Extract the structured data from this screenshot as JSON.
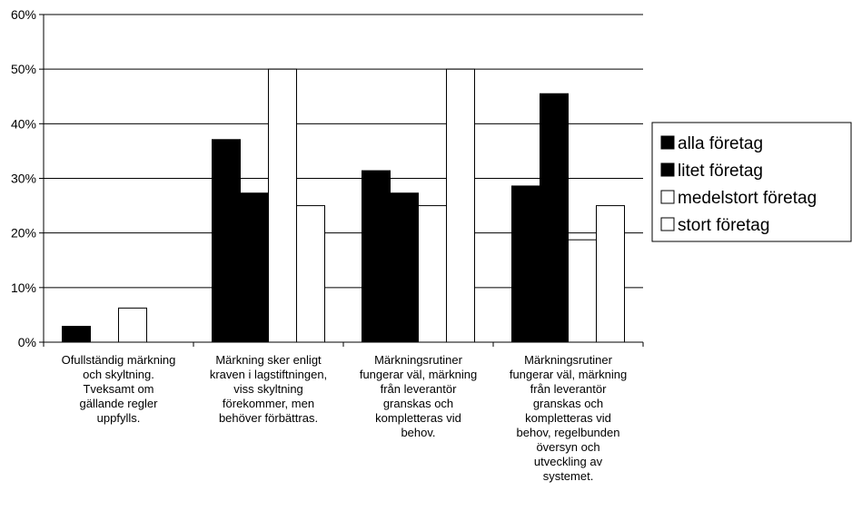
{
  "chart_data": {
    "type": "bar",
    "categories": [
      [
        "Ofullständig märkning",
        "och skyltning.",
        "Tveksamt om",
        "gällande regler",
        "uppfylls."
      ],
      [
        "Märkning sker enligt",
        "kraven i lagstiftningen,",
        "viss skyltning",
        "förekommer, men",
        "behöver förbättras."
      ],
      [
        "Märkningsrutiner",
        "fungerar väl, märkning",
        "från leverantör",
        "granskas och",
        "kompletteras vid",
        "behov."
      ],
      [
        "Märkningsrutiner",
        "fungerar väl, märkning",
        "från leverantör",
        "granskas och",
        "kompletteras vid",
        "behov, regelbunden",
        "översyn och",
        "utveckling av",
        "systemet."
      ]
    ],
    "series": [
      {
        "name": "alla företag",
        "color": "#000000",
        "values": [
          2.9,
          37.1,
          31.4,
          28.6
        ]
      },
      {
        "name": "litet företag",
        "color": "#000000",
        "values": [
          0,
          27.3,
          27.3,
          45.5
        ]
      },
      {
        "name": "medelstort företag",
        "color": "#ffffff",
        "values": [
          6.25,
          50,
          25,
          18.75
        ]
      },
      {
        "name": "stort företag",
        "color": "#ffffff",
        "values": [
          0,
          25,
          50,
          25
        ]
      }
    ],
    "yticks": [
      "0%",
      "10%",
      "20%",
      "30%",
      "40%",
      "50%",
      "60%"
    ],
    "ylim": [
      0,
      60
    ],
    "grid": true,
    "legend_position": "right"
  }
}
